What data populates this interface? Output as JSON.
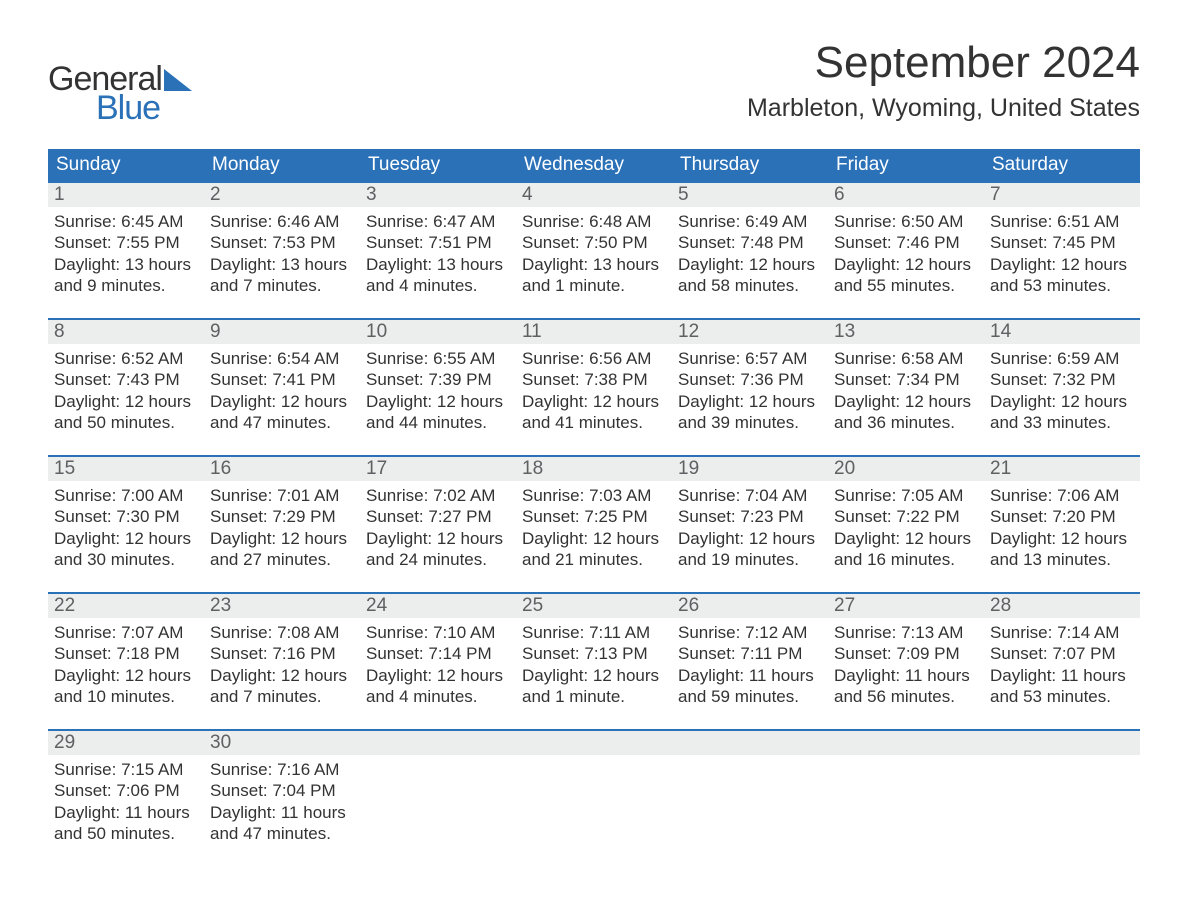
{
  "logo": {
    "general": "General",
    "blue": "Blue"
  },
  "title": "September 2024",
  "location": "Marbleton, Wyoming, United States",
  "colors": {
    "header_bg": "#2a71b8",
    "header_fg": "#ffffff",
    "daynum_bg": "#eceded",
    "daynum_fg": "#5f6062",
    "text": "#333333",
    "rule": "#2a71b8"
  },
  "day_headers": [
    "Sunday",
    "Monday",
    "Tuesday",
    "Wednesday",
    "Thursday",
    "Friday",
    "Saturday"
  ],
  "weeks": [
    [
      {
        "n": "1",
        "sunrise": "Sunrise: 6:45 AM",
        "sunset": "Sunset: 7:55 PM",
        "d1": "Daylight: 13 hours",
        "d2": "and 9 minutes."
      },
      {
        "n": "2",
        "sunrise": "Sunrise: 6:46 AM",
        "sunset": "Sunset: 7:53 PM",
        "d1": "Daylight: 13 hours",
        "d2": "and 7 minutes."
      },
      {
        "n": "3",
        "sunrise": "Sunrise: 6:47 AM",
        "sunset": "Sunset: 7:51 PM",
        "d1": "Daylight: 13 hours",
        "d2": "and 4 minutes."
      },
      {
        "n": "4",
        "sunrise": "Sunrise: 6:48 AM",
        "sunset": "Sunset: 7:50 PM",
        "d1": "Daylight: 13 hours",
        "d2": "and 1 minute."
      },
      {
        "n": "5",
        "sunrise": "Sunrise: 6:49 AM",
        "sunset": "Sunset: 7:48 PM",
        "d1": "Daylight: 12 hours",
        "d2": "and 58 minutes."
      },
      {
        "n": "6",
        "sunrise": "Sunrise: 6:50 AM",
        "sunset": "Sunset: 7:46 PM",
        "d1": "Daylight: 12 hours",
        "d2": "and 55 minutes."
      },
      {
        "n": "7",
        "sunrise": "Sunrise: 6:51 AM",
        "sunset": "Sunset: 7:45 PM",
        "d1": "Daylight: 12 hours",
        "d2": "and 53 minutes."
      }
    ],
    [
      {
        "n": "8",
        "sunrise": "Sunrise: 6:52 AM",
        "sunset": "Sunset: 7:43 PM",
        "d1": "Daylight: 12 hours",
        "d2": "and 50 minutes."
      },
      {
        "n": "9",
        "sunrise": "Sunrise: 6:54 AM",
        "sunset": "Sunset: 7:41 PM",
        "d1": "Daylight: 12 hours",
        "d2": "and 47 minutes."
      },
      {
        "n": "10",
        "sunrise": "Sunrise: 6:55 AM",
        "sunset": "Sunset: 7:39 PM",
        "d1": "Daylight: 12 hours",
        "d2": "and 44 minutes."
      },
      {
        "n": "11",
        "sunrise": "Sunrise: 6:56 AM",
        "sunset": "Sunset: 7:38 PM",
        "d1": "Daylight: 12 hours",
        "d2": "and 41 minutes."
      },
      {
        "n": "12",
        "sunrise": "Sunrise: 6:57 AM",
        "sunset": "Sunset: 7:36 PM",
        "d1": "Daylight: 12 hours",
        "d2": "and 39 minutes."
      },
      {
        "n": "13",
        "sunrise": "Sunrise: 6:58 AM",
        "sunset": "Sunset: 7:34 PM",
        "d1": "Daylight: 12 hours",
        "d2": "and 36 minutes."
      },
      {
        "n": "14",
        "sunrise": "Sunrise: 6:59 AM",
        "sunset": "Sunset: 7:32 PM",
        "d1": "Daylight: 12 hours",
        "d2": "and 33 minutes."
      }
    ],
    [
      {
        "n": "15",
        "sunrise": "Sunrise: 7:00 AM",
        "sunset": "Sunset: 7:30 PM",
        "d1": "Daylight: 12 hours",
        "d2": "and 30 minutes."
      },
      {
        "n": "16",
        "sunrise": "Sunrise: 7:01 AM",
        "sunset": "Sunset: 7:29 PM",
        "d1": "Daylight: 12 hours",
        "d2": "and 27 minutes."
      },
      {
        "n": "17",
        "sunrise": "Sunrise: 7:02 AM",
        "sunset": "Sunset: 7:27 PM",
        "d1": "Daylight: 12 hours",
        "d2": "and 24 minutes."
      },
      {
        "n": "18",
        "sunrise": "Sunrise: 7:03 AM",
        "sunset": "Sunset: 7:25 PM",
        "d1": "Daylight: 12 hours",
        "d2": "and 21 minutes."
      },
      {
        "n": "19",
        "sunrise": "Sunrise: 7:04 AM",
        "sunset": "Sunset: 7:23 PM",
        "d1": "Daylight: 12 hours",
        "d2": "and 19 minutes."
      },
      {
        "n": "20",
        "sunrise": "Sunrise: 7:05 AM",
        "sunset": "Sunset: 7:22 PM",
        "d1": "Daylight: 12 hours",
        "d2": "and 16 minutes."
      },
      {
        "n": "21",
        "sunrise": "Sunrise: 7:06 AM",
        "sunset": "Sunset: 7:20 PM",
        "d1": "Daylight: 12 hours",
        "d2": "and 13 minutes."
      }
    ],
    [
      {
        "n": "22",
        "sunrise": "Sunrise: 7:07 AM",
        "sunset": "Sunset: 7:18 PM",
        "d1": "Daylight: 12 hours",
        "d2": "and 10 minutes."
      },
      {
        "n": "23",
        "sunrise": "Sunrise: 7:08 AM",
        "sunset": "Sunset: 7:16 PM",
        "d1": "Daylight: 12 hours",
        "d2": "and 7 minutes."
      },
      {
        "n": "24",
        "sunrise": "Sunrise: 7:10 AM",
        "sunset": "Sunset: 7:14 PM",
        "d1": "Daylight: 12 hours",
        "d2": "and 4 minutes."
      },
      {
        "n": "25",
        "sunrise": "Sunrise: 7:11 AM",
        "sunset": "Sunset: 7:13 PM",
        "d1": "Daylight: 12 hours",
        "d2": "and 1 minute."
      },
      {
        "n": "26",
        "sunrise": "Sunrise: 7:12 AM",
        "sunset": "Sunset: 7:11 PM",
        "d1": "Daylight: 11 hours",
        "d2": "and 59 minutes."
      },
      {
        "n": "27",
        "sunrise": "Sunrise: 7:13 AM",
        "sunset": "Sunset: 7:09 PM",
        "d1": "Daylight: 11 hours",
        "d2": "and 56 minutes."
      },
      {
        "n": "28",
        "sunrise": "Sunrise: 7:14 AM",
        "sunset": "Sunset: 7:07 PM",
        "d1": "Daylight: 11 hours",
        "d2": "and 53 minutes."
      }
    ],
    [
      {
        "n": "29",
        "sunrise": "Sunrise: 7:15 AM",
        "sunset": "Sunset: 7:06 PM",
        "d1": "Daylight: 11 hours",
        "d2": "and 50 minutes."
      },
      {
        "n": "30",
        "sunrise": "Sunrise: 7:16 AM",
        "sunset": "Sunset: 7:04 PM",
        "d1": "Daylight: 11 hours",
        "d2": "and 47 minutes."
      },
      {
        "empty": true
      },
      {
        "empty": true
      },
      {
        "empty": true
      },
      {
        "empty": true
      },
      {
        "empty": true
      }
    ]
  ]
}
